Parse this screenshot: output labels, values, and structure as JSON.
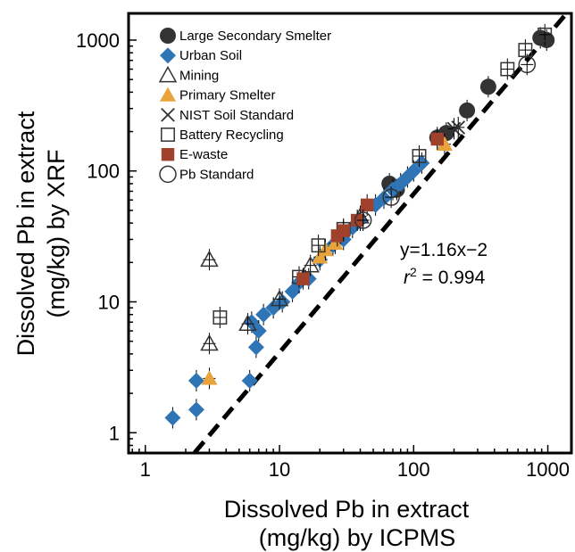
{
  "chart_data": {
    "type": "scatter",
    "xlabel_lines": [
      "Dissolved Pb in extract",
      "(mg/kg) by ICPMS"
    ],
    "ylabel_lines": [
      "Dissolved Pb in extract",
      "(mg/kg) by XRF"
    ],
    "x_scale": "log",
    "y_scale": "log",
    "xlim": [
      0.75,
      1500
    ],
    "ylim": [
      0.7,
      1600
    ],
    "x_ticks": [
      "1",
      "10",
      "100",
      "1000"
    ],
    "y_ticks": [
      "1",
      "10",
      "100",
      "1000"
    ],
    "fit": {
      "equation": "y=1.16x−2",
      "r2_symbol": "r",
      "r2_exp": "2",
      "r2_value": " = 0.994",
      "x_range": [
        0.75,
        1500
      ]
    },
    "legend_position": "top-left",
    "series": [
      {
        "name": "Large Secondary Smelter",
        "marker": "circle",
        "color": "#333333",
        "points": [
          [
            66,
            80
          ],
          [
            75,
            72
          ],
          [
            150,
            180
          ],
          [
            175,
            195
          ],
          [
            250,
            290
          ],
          [
            360,
            440
          ],
          [
            880,
            1040
          ],
          [
            980,
            1000
          ]
        ]
      },
      {
        "name": "Urban Soil",
        "marker": "diamond",
        "color": "#2f75b5",
        "points": [
          [
            1.6,
            1.3
          ],
          [
            2.4,
            1.5
          ],
          [
            2.4,
            2.5
          ],
          [
            6,
            2.5
          ],
          [
            6.2,
            7
          ],
          [
            6.7,
            4.5
          ],
          [
            7,
            6
          ],
          [
            7.6,
            8
          ],
          [
            9,
            9
          ],
          [
            10.5,
            10
          ],
          [
            12.5,
            12
          ],
          [
            14,
            14
          ],
          [
            16.5,
            15
          ],
          [
            20,
            21
          ],
          [
            25,
            27
          ],
          [
            30,
            30
          ],
          [
            35,
            37
          ],
          [
            40,
            42
          ],
          [
            52,
            55
          ],
          [
            60,
            62
          ],
          [
            70,
            72
          ],
          [
            80,
            80
          ],
          [
            90,
            90
          ],
          [
            100,
            100
          ],
          [
            115,
            115
          ]
        ]
      },
      {
        "name": "Mining",
        "marker": "triangle",
        "color": "#333333",
        "points": [
          [
            3,
            21
          ],
          [
            3,
            4.8
          ],
          [
            5.8,
            6.8
          ],
          [
            10,
            10.5
          ],
          [
            17,
            19
          ],
          [
            40,
            45
          ]
        ]
      },
      {
        "name": "Primary Smelter",
        "marker": "triangle-filled",
        "color": "#e8a33d",
        "points": [
          [
            3,
            2.6
          ],
          [
            20,
            22
          ],
          [
            22,
            25
          ],
          [
            26,
            28
          ],
          [
            170,
            160
          ]
        ]
      },
      {
        "name": "NIST Soil Standard",
        "marker": "x",
        "color": "#333333",
        "points": [
          [
            200,
            210
          ],
          [
            215,
            215
          ]
        ]
      },
      {
        "name": "Battery Recycling",
        "marker": "square",
        "color": "#333333",
        "points": [
          [
            3.6,
            7.6
          ],
          [
            14,
            15.5
          ],
          [
            19.5,
            27
          ],
          [
            30,
            36
          ],
          [
            110,
            130
          ],
          [
            500,
            600
          ],
          [
            680,
            840
          ],
          [
            950,
            1100
          ]
        ]
      },
      {
        "name": "E-waste",
        "marker": "square-filled",
        "color": "#a0412b",
        "points": [
          [
            15,
            15
          ],
          [
            27,
            32
          ],
          [
            30,
            35
          ],
          [
            38,
            42
          ],
          [
            45,
            55
          ],
          [
            150,
            175
          ]
        ]
      },
      {
        "name": "Pb Standard",
        "marker": "circle-open",
        "color": "#333333",
        "points": [
          [
            42,
            42
          ],
          [
            68,
            63
          ],
          [
            700,
            650
          ]
        ]
      }
    ]
  }
}
